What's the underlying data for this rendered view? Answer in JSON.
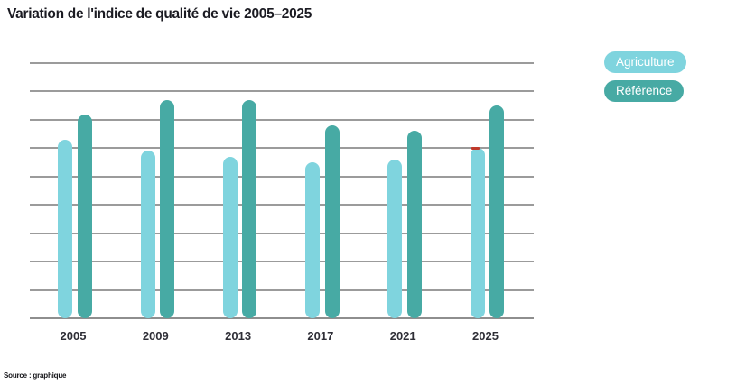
{
  "title": "Variation de l'indice de qualité de vie 2005–2025",
  "footer": "Source : graphique",
  "colors": {
    "agriculture": "#7fd4de",
    "reference": "#47aaa4",
    "gridline": "#9b9b9b",
    "axis": "#8e8e8e",
    "title_text": "#1b1b22",
    "tick_text": "#2e2e36",
    "legend_text": "#ffffff",
    "red_artifact": "#c0392b",
    "background": "#ffffff"
  },
  "legend": [
    {
      "label": "Agriculture",
      "slug": "agriculture",
      "color": "#7fd4de"
    },
    {
      "label": "Référence",
      "slug": "reference",
      "color": "#47aaa4"
    }
  ],
  "chart_data": {
    "type": "bar",
    "title": "Variation de l'indice de qualité de vie 2005–2025",
    "categories": [
      "2005",
      "2009",
      "2013",
      "2017",
      "2021",
      "2025"
    ],
    "series": [
      {
        "name": "Agriculture",
        "slug": "agriculture",
        "color": "#7fd4de",
        "values": [
          63,
          59,
          57,
          55,
          56,
          60
        ]
      },
      {
        "name": "Référence",
        "slug": "reference",
        "color": "#47aaa4",
        "values": [
          72,
          77,
          77,
          68,
          66,
          75
        ]
      }
    ],
    "xlabel": "",
    "ylabel": "",
    "ylim": [
      0,
      90
    ],
    "gridline_step": 10,
    "grid": true,
    "y_tick_labels_visible": false,
    "legend_position": "top-right",
    "bar_style": "rounded-caps"
  }
}
